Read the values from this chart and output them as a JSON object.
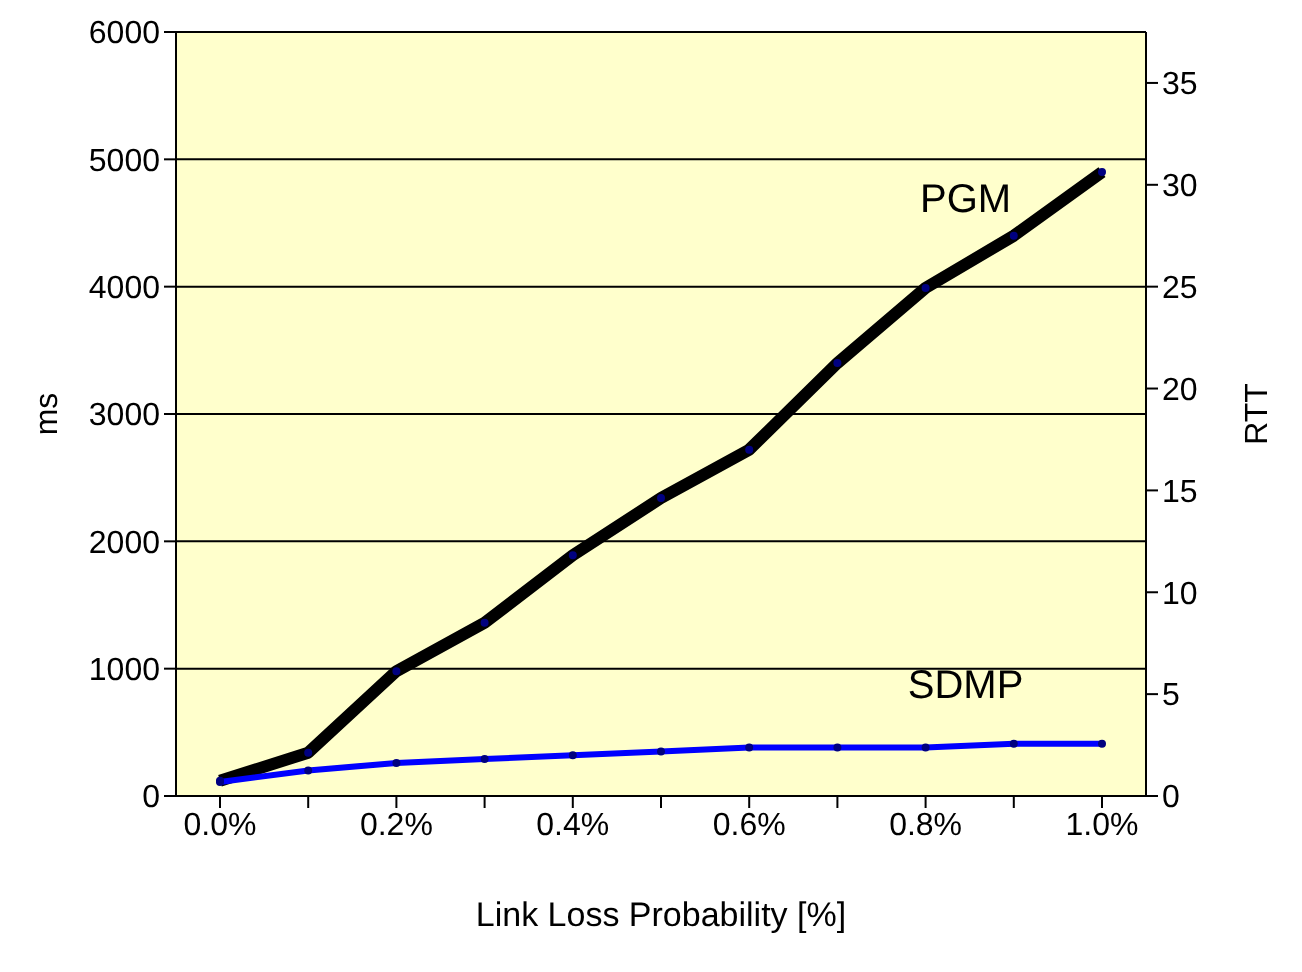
{
  "chart_data": {
    "type": "line",
    "xlabel": "Link Loss Probability [%]",
    "ylabel": "ms",
    "y2label": "RTT",
    "categories": [
      "0.0%",
      null,
      "0.2%",
      null,
      "0.4%",
      null,
      "0.6%",
      null,
      "0.8%",
      null,
      "1.0%"
    ],
    "series": [
      {
        "name": "PGM",
        "color": "#000000",
        "values": [
          120,
          340,
          980,
          1360,
          1890,
          2340,
          2720,
          3400,
          3990,
          4400,
          4900
        ]
      },
      {
        "name": "SDMP",
        "color": "#0000ff",
        "values": [
          110,
          200,
          260,
          290,
          320,
          350,
          380,
          380,
          380,
          410,
          410
        ]
      }
    ],
    "ylim": [
      0,
      6000
    ],
    "yticks": [
      0,
      1000,
      2000,
      3000,
      4000,
      5000,
      6000
    ],
    "y2lim": [
      0,
      37.5
    ],
    "y2ticks": [
      0,
      5,
      10,
      15,
      20,
      25,
      30,
      35
    ],
    "grid": "y",
    "marker": "circle",
    "line_style": "solid",
    "legend": false
  }
}
